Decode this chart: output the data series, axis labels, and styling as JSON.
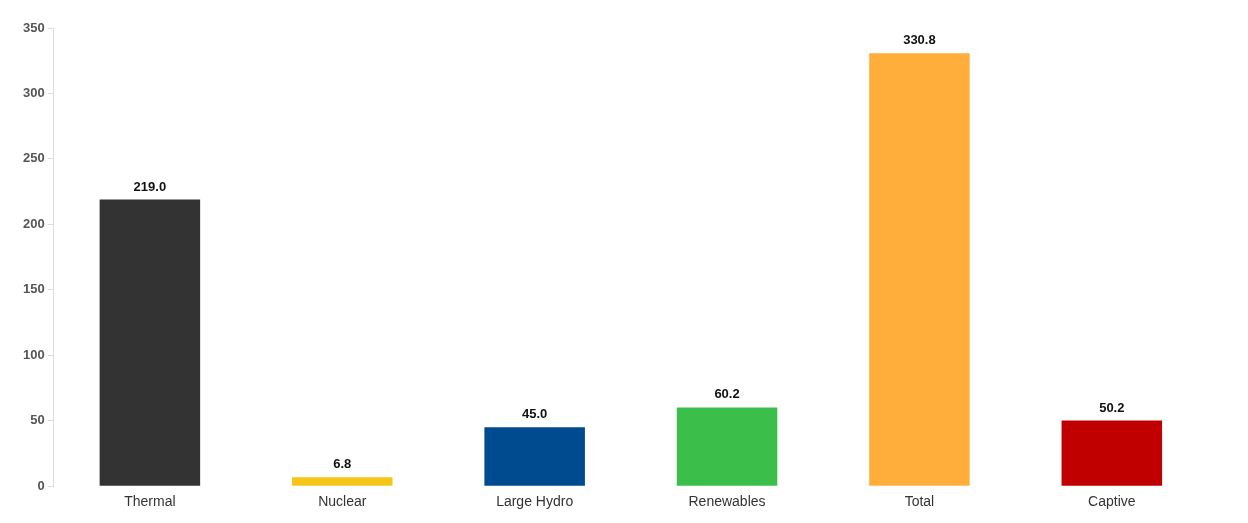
{
  "chart_data": {
    "type": "bar",
    "categories": [
      "Thermal",
      "Nuclear",
      "Large Hydro",
      "Renewables",
      "Total",
      "Captive"
    ],
    "values": [
      219.0,
      6.8,
      45.0,
      60.2,
      330.8,
      50.2
    ],
    "colors": [
      "#333333",
      "#f5c518",
      "#004a8f",
      "#3cbf4a",
      "#ffae3c",
      "#c00000"
    ],
    "value_labels": [
      "219.0",
      "6.8",
      "45.0",
      "60.2",
      "330.8",
      "50.2"
    ],
    "ylim": [
      0,
      350
    ],
    "yticks": [
      0,
      50,
      100,
      150,
      200,
      250,
      300,
      350
    ],
    "grid": false,
    "legend": false
  }
}
